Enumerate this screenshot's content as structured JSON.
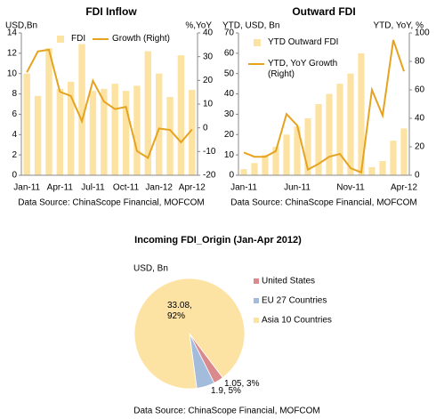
{
  "chart_data": [
    {
      "type": "combo",
      "title": "FDI Inflow",
      "y_label": "USD,Bn",
      "y2_label": "%,YoY",
      "categories": [
        "Jan-11",
        null,
        null,
        "Apr-11",
        null,
        null,
        "Jul-11",
        null,
        null,
        "Oct-11",
        null,
        null,
        "Jan-12",
        null,
        null,
        "Apr-12"
      ],
      "series": [
        {
          "name": "FDI",
          "type": "bar",
          "color": "#fde3a3",
          "values": [
            10.0,
            7.8,
            12.5,
            8.5,
            9.2,
            12.9,
            8.3,
            8.5,
            9.0,
            8.3,
            8.8,
            12.2,
            10.0,
            7.7,
            11.8,
            8.4
          ]
        },
        {
          "name": "Growth (Right)",
          "type": "line",
          "axis": "y2",
          "color": "#e5a320",
          "values": [
            23.4,
            32.2,
            32.9,
            15.2,
            13.4,
            2.8,
            19.8,
            11.1,
            7.9,
            8.8,
            -9.8,
            -12.7,
            -0.3,
            -0.9,
            -6.1,
            -0.7
          ]
        }
      ],
      "ylim": [
        0,
        14
      ],
      "yticks": [
        0,
        2,
        4,
        6,
        8,
        10,
        12,
        14
      ],
      "y2lim": [
        -20,
        40
      ],
      "y2ticks": [
        -20,
        -10,
        0,
        10,
        20,
        30,
        40
      ],
      "source": "Data Source: ChinaScope Financial, MOFCOM"
    },
    {
      "type": "combo",
      "title": "Outward FDI",
      "y_label": "YTD, USD, Bn",
      "y2_label": "YTD, YoY, %",
      "categories": [
        "Jan-11",
        null,
        null,
        null,
        null,
        "Jun-11",
        null,
        null,
        null,
        null,
        "Nov-11",
        null,
        null,
        null,
        null,
        "Apr-12"
      ],
      "series": [
        {
          "name": "YTD Outward FDI",
          "type": "bar",
          "color": "#fde3a3",
          "values": [
            3,
            6,
            10,
            14,
            20,
            24,
            28,
            35,
            40,
            45,
            50,
            60,
            4,
            7,
            17,
            23
          ]
        },
        {
          "name": "YTD, YoY Growth (Right)",
          "type": "line",
          "axis": "y2",
          "color": "#e5a320",
          "values": [
            16,
            13,
            13,
            17,
            43,
            35,
            4,
            8,
            13,
            15,
            5,
            2,
            60,
            42,
            95,
            73
          ]
        }
      ],
      "ylim": [
        0,
        70
      ],
      "yticks": [
        0,
        10,
        20,
        30,
        40,
        50,
        60,
        70
      ],
      "y2lim": [
        0,
        100
      ],
      "y2ticks": [
        0,
        20,
        40,
        60,
        80,
        100
      ],
      "source": "Data Source: ChinaScope Financial,  MOFCOM"
    },
    {
      "type": "pie",
      "title": "Incoming FDI_Origin  (Jan-Apr  2012)",
      "unit_label": "USD, Bn",
      "categories": [
        "United States",
        "EU 27 Countries",
        "Asia 10 Countries"
      ],
      "values": [
        1.05,
        1.9,
        33.08
      ],
      "value_labels": [
        "1.05, 3%",
        "1.9, 5%",
        "33.08, 92%"
      ],
      "colors": [
        "#da8a8c",
        "#a3bcdc",
        "#fde3a3"
      ],
      "source": "Data Source: ChinaScope Financial,  MOFCOM"
    }
  ]
}
